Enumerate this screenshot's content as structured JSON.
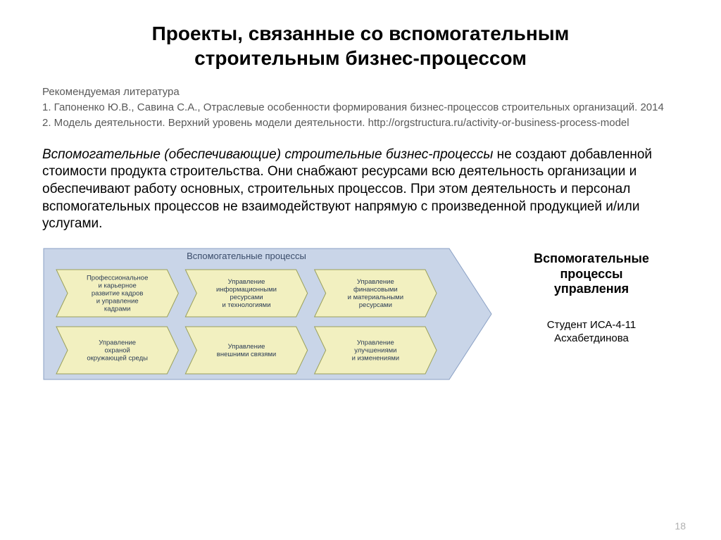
{
  "title_line1": "Проекты, связанные со вспомогательным",
  "title_line2": "строительным бизнес-процессом",
  "literature": {
    "heading": "Рекомендуемая литература",
    "items": [
      "1. Гапоненко Ю.В., Савина С.А., Отраслевые особенности формирования бизнес-процессов строительных организаций. 2014",
      "2. Модель деятельности. Верхний уровень модели деятельности. http://orgstructura.ru/activity-or-business-process-model"
    ]
  },
  "body": {
    "italic_lead": "Вспомогательные (обеспечивающие) строительные бизнес-процессы",
    "rest": " не создают добавленной стоимости продукта строительства. Они снабжают ресурсами всю деятельность организации и обеспечивают работу основных, строительных процессов. При этом деятельность и персонал вспомогательных процессов не взаимодействуют напрямую с произведенной продукцией и/или услугами."
  },
  "diagram": {
    "header": "Вспомогательные процессы",
    "container_fill": "#c9d5e8",
    "container_stroke": "#8aa0c4",
    "chevron_fill": "#f2f0c0",
    "chevron_stroke": "#9aa05a",
    "text_color": "#2a3b55",
    "header_color": "#3b4d6b",
    "header_fontsize": 13,
    "chevron_fontsize": 9.5,
    "rows": [
      [
        [
          "Профессиональное",
          "и карьерное",
          "развитие кадров",
          "и управление",
          "кадрами"
        ],
        [
          "Управление",
          "информационными",
          "ресурсами",
          "и технологиями"
        ],
        [
          "Управление",
          "финансовыми",
          "и материальными",
          "ресурсами"
        ]
      ],
      [
        [
          "Управление",
          "охраной",
          "окружающей среды"
        ],
        [
          "Управление",
          "внешними связями"
        ],
        [
          "Управление",
          "улучшениями",
          "и изменениями"
        ]
      ]
    ]
  },
  "side": {
    "title_l1": "Вспомогательные",
    "title_l2": "процессы",
    "title_l3": "управления",
    "student_l1": "Студент ИСА-4-11",
    "student_l2": "Асхабетдинова"
  },
  "page_number": "18"
}
